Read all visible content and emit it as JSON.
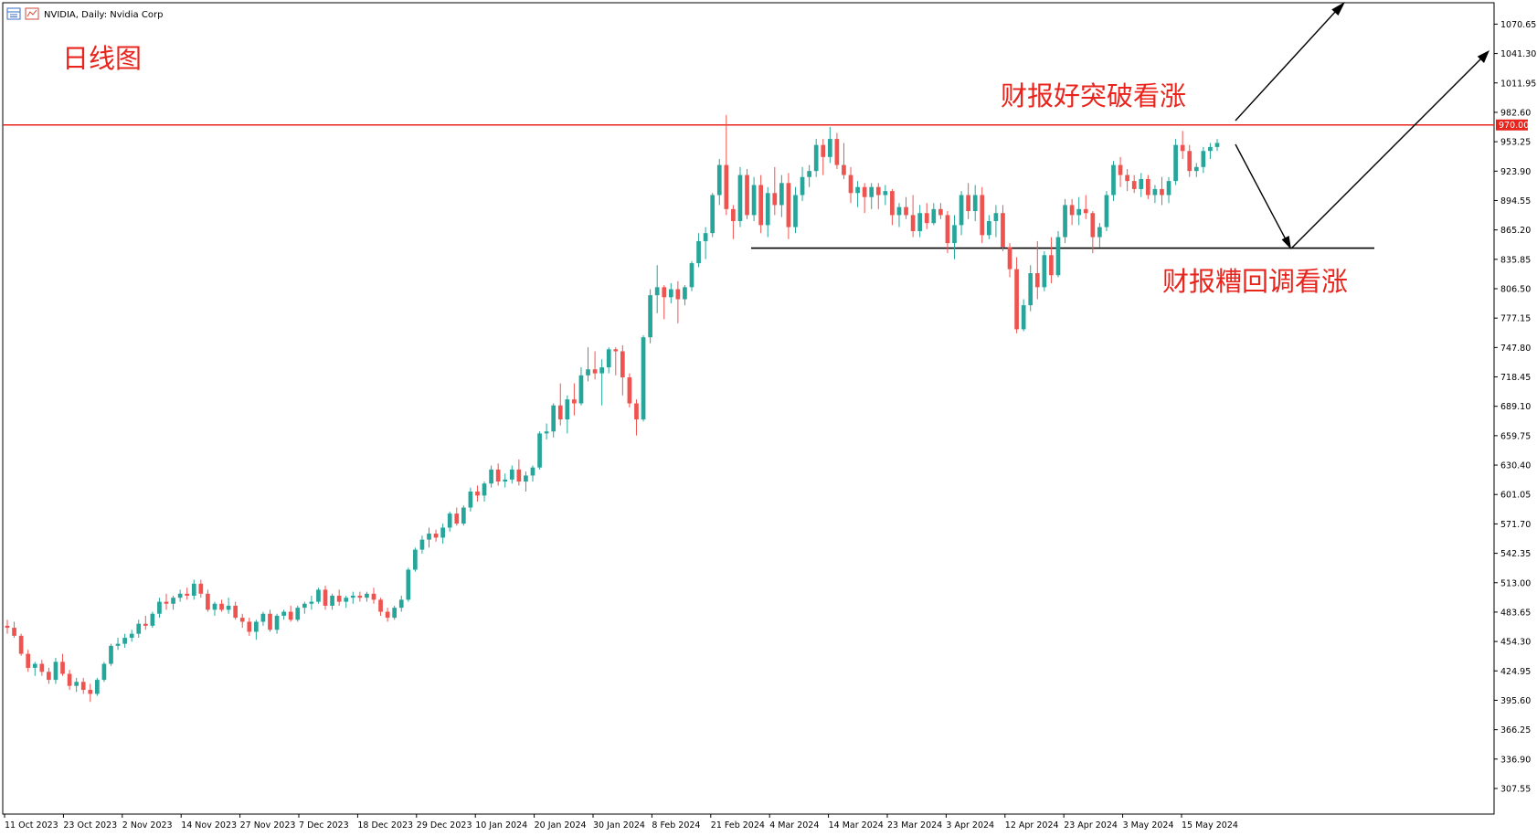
{
  "header": {
    "symbol_text": "NVIDIA, Daily:  Nvidia Corp",
    "symbol_icon": "chart-window-icon"
  },
  "annotations": {
    "title": "日线图",
    "upper_label": "财报好突破看涨",
    "lower_label": "财报糟回调看涨"
  },
  "colors": {
    "up": "#26a69a",
    "down": "#ef5350",
    "resistance": "#e8241c",
    "support": "#000000",
    "price_tag_bg": "#e8241c"
  },
  "resistance_level": {
    "value": 970.0,
    "label": "970.00"
  },
  "support_level": {
    "value": 847.0
  },
  "chart_data": {
    "type": "candlestick",
    "title": "",
    "ylim": [
      282.0,
      1092.0
    ],
    "grid": false,
    "y_ticks": [
      "1070.65",
      "1041.30",
      "1011.95",
      "982.60",
      "953.25",
      "923.90",
      "894.55",
      "865.20",
      "835.85",
      "806.50",
      "777.15",
      "747.80",
      "718.45",
      "689.10",
      "659.75",
      "630.40",
      "601.05",
      "571.70",
      "542.35",
      "513.00",
      "483.65",
      "454.30",
      "424.95",
      "395.60",
      "366.25",
      "336.90",
      "307.55"
    ],
    "x_ticks": [
      "11 Oct 2023",
      "23 Oct 2023",
      "2 Nov 2023",
      "14 Nov 2023",
      "27 Nov 2023",
      "7 Dec 2023",
      "18 Dec 2023",
      "29 Dec 2023",
      "10 Jan 2024",
      "20 Jan 2024",
      "30 Jan 2024",
      "8 Feb 2024",
      "21 Feb 2024",
      "4 Mar 2024",
      "14 Mar 2024",
      "23 Mar 2024",
      "3 Apr 2024",
      "12 Apr 2024",
      "23 Apr 2024",
      "3 May 2024",
      "15 May 2024"
    ],
    "candles": [
      [
        470,
        476,
        462,
        468
      ],
      [
        468,
        474,
        458,
        460
      ],
      [
        460,
        462,
        440,
        442
      ],
      [
        442,
        446,
        424,
        428
      ],
      [
        428,
        434,
        420,
        432
      ],
      [
        432,
        436,
        420,
        424
      ],
      [
        424,
        428,
        412,
        416
      ],
      [
        416,
        438,
        412,
        434
      ],
      [
        434,
        442,
        420,
        422
      ],
      [
        422,
        426,
        406,
        410
      ],
      [
        410,
        418,
        404,
        414
      ],
      [
        414,
        418,
        402,
        406
      ],
      [
        406,
        412,
        394,
        402
      ],
      [
        402,
        418,
        400,
        416
      ],
      [
        416,
        434,
        414,
        432
      ],
      [
        432,
        452,
        430,
        450
      ],
      [
        450,
        458,
        446,
        452
      ],
      [
        452,
        462,
        448,
        458
      ],
      [
        458,
        466,
        454,
        462
      ],
      [
        462,
        476,
        458,
        472
      ],
      [
        472,
        480,
        466,
        470
      ],
      [
        470,
        484,
        468,
        482
      ],
      [
        482,
        498,
        478,
        494
      ],
      [
        494,
        502,
        486,
        492
      ],
      [
        492,
        500,
        486,
        498
      ],
      [
        498,
        506,
        494,
        502
      ],
      [
        502,
        508,
        496,
        500
      ],
      [
        500,
        516,
        496,
        512
      ],
      [
        512,
        516,
        498,
        502
      ],
      [
        502,
        506,
        484,
        486
      ],
      [
        486,
        494,
        480,
        492
      ],
      [
        492,
        496,
        484,
        486
      ],
      [
        486,
        498,
        482,
        490
      ],
      [
        490,
        494,
        476,
        478
      ],
      [
        478,
        482,
        468,
        474
      ],
      [
        474,
        478,
        460,
        464
      ],
      [
        464,
        476,
        456,
        474
      ],
      [
        474,
        484,
        470,
        482
      ],
      [
        482,
        486,
        464,
        466
      ],
      [
        466,
        482,
        462,
        480
      ],
      [
        480,
        486,
        476,
        484
      ],
      [
        484,
        490,
        474,
        476
      ],
      [
        476,
        490,
        474,
        488
      ],
      [
        488,
        494,
        482,
        492
      ],
      [
        492,
        500,
        486,
        494
      ],
      [
        494,
        508,
        492,
        506
      ],
      [
        506,
        510,
        486,
        490
      ],
      [
        490,
        502,
        486,
        500
      ],
      [
        500,
        506,
        490,
        494
      ],
      [
        494,
        500,
        488,
        498
      ],
      [
        498,
        504,
        492,
        500
      ],
      [
        500,
        504,
        494,
        498
      ],
      [
        498,
        504,
        494,
        502
      ],
      [
        502,
        508,
        492,
        496
      ],
      [
        496,
        498,
        480,
        484
      ],
      [
        484,
        488,
        474,
        478
      ],
      [
        478,
        490,
        476,
        488
      ],
      [
        488,
        500,
        484,
        496
      ],
      [
        496,
        528,
        494,
        526
      ],
      [
        526,
        548,
        524,
        546
      ],
      [
        546,
        560,
        542,
        556
      ],
      [
        556,
        568,
        548,
        562
      ],
      [
        562,
        566,
        554,
        558
      ],
      [
        558,
        572,
        552,
        568
      ],
      [
        568,
        584,
        564,
        582
      ],
      [
        582,
        588,
        570,
        572
      ],
      [
        572,
        590,
        570,
        588
      ],
      [
        588,
        608,
        584,
        604
      ],
      [
        604,
        610,
        594,
        600
      ],
      [
        600,
        614,
        594,
        612
      ],
      [
        612,
        630,
        608,
        626
      ],
      [
        626,
        632,
        610,
        614
      ],
      [
        614,
        622,
        608,
        616
      ],
      [
        616,
        630,
        612,
        626
      ],
      [
        626,
        636,
        610,
        614
      ],
      [
        614,
        624,
        604,
        620
      ],
      [
        620,
        630,
        614,
        628
      ],
      [
        628,
        664,
        626,
        662
      ],
      [
        662,
        672,
        656,
        664
      ],
      [
        664,
        692,
        658,
        690
      ],
      [
        690,
        712,
        670,
        676
      ],
      [
        676,
        700,
        662,
        696
      ],
      [
        696,
        712,
        680,
        692
      ],
      [
        692,
        728,
        690,
        720
      ],
      [
        720,
        748,
        714,
        726
      ],
      [
        726,
        744,
        716,
        722
      ],
      [
        722,
        736,
        690,
        728
      ],
      [
        728,
        748,
        722,
        746
      ],
      [
        746,
        748,
        720,
        744
      ],
      [
        744,
        750,
        700,
        718
      ],
      [
        718,
        722,
        688,
        692
      ],
      [
        692,
        696,
        660,
        676
      ],
      [
        676,
        760,
        674,
        758
      ],
      [
        758,
        806,
        752,
        800
      ],
      [
        800,
        830,
        782,
        808
      ],
      [
        808,
        810,
        776,
        798
      ],
      [
        798,
        812,
        792,
        806
      ],
      [
        806,
        814,
        772,
        796
      ],
      [
        796,
        810,
        790,
        808
      ],
      [
        808,
        834,
        804,
        832
      ],
      [
        832,
        862,
        828,
        854
      ],
      [
        854,
        868,
        836,
        862
      ],
      [
        862,
        902,
        858,
        900
      ],
      [
        900,
        936,
        890,
        930
      ],
      [
        930,
        980,
        880,
        886
      ],
      [
        886,
        890,
        856,
        874
      ],
      [
        874,
        928,
        868,
        920
      ],
      [
        920,
        926,
        876,
        880
      ],
      [
        880,
        918,
        874,
        910
      ],
      [
        910,
        920,
        862,
        870
      ],
      [
        870,
        908,
        858,
        902
      ],
      [
        902,
        928,
        880,
        890
      ],
      [
        890,
        920,
        878,
        912
      ],
      [
        912,
        922,
        856,
        868
      ],
      [
        868,
        908,
        862,
        900
      ],
      [
        900,
        928,
        894,
        918
      ],
      [
        918,
        930,
        908,
        924
      ],
      [
        924,
        956,
        918,
        950
      ],
      [
        950,
        956,
        920,
        938
      ],
      [
        938,
        968,
        932,
        956
      ],
      [
        956,
        962,
        926,
        930
      ],
      [
        930,
        952,
        916,
        920
      ],
      [
        920,
        928,
        892,
        902
      ],
      [
        902,
        914,
        888,
        908
      ],
      [
        908,
        912,
        882,
        898
      ],
      [
        898,
        912,
        886,
        908
      ],
      [
        908,
        912,
        886,
        900
      ],
      [
        900,
        910,
        890,
        904
      ],
      [
        904,
        906,
        870,
        880
      ],
      [
        880,
        892,
        868,
        888
      ],
      [
        888,
        898,
        876,
        880
      ],
      [
        880,
        900,
        858,
        864
      ],
      [
        864,
        890,
        858,
        882
      ],
      [
        882,
        892,
        866,
        872
      ],
      [
        872,
        892,
        870,
        886
      ],
      [
        886,
        892,
        876,
        880
      ],
      [
        880,
        884,
        842,
        852
      ],
      [
        852,
        880,
        836,
        870
      ],
      [
        870,
        904,
        860,
        900
      ],
      [
        900,
        912,
        876,
        884
      ],
      [
        884,
        910,
        874,
        900
      ],
      [
        900,
        908,
        852,
        860
      ],
      [
        860,
        880,
        856,
        874
      ],
      [
        874,
        890,
        858,
        882
      ],
      [
        882,
        890,
        844,
        848
      ],
      [
        848,
        852,
        818,
        826
      ],
      [
        826,
        838,
        762,
        766
      ],
      [
        766,
        796,
        764,
        790
      ],
      [
        790,
        830,
        784,
        822
      ],
      [
        822,
        854,
        796,
        808
      ],
      [
        808,
        844,
        804,
        840
      ],
      [
        840,
        858,
        812,
        820
      ],
      [
        820,
        864,
        818,
        858
      ],
      [
        858,
        896,
        852,
        890
      ],
      [
        890,
        896,
        870,
        880
      ],
      [
        880,
        898,
        870,
        886
      ],
      [
        886,
        900,
        876,
        882
      ],
      [
        882,
        884,
        842,
        858
      ],
      [
        858,
        872,
        848,
        868
      ],
      [
        868,
        904,
        864,
        900
      ],
      [
        900,
        934,
        894,
        930
      ],
      [
        930,
        938,
        908,
        920
      ],
      [
        920,
        926,
        904,
        914
      ],
      [
        914,
        920,
        902,
        906
      ],
      [
        906,
        922,
        898,
        916
      ],
      [
        916,
        920,
        896,
        900
      ],
      [
        900,
        910,
        892,
        906
      ],
      [
        906,
        918,
        890,
        900
      ],
      [
        900,
        918,
        892,
        914
      ],
      [
        914,
        956,
        910,
        950
      ],
      [
        950,
        964,
        936,
        944
      ],
      [
        944,
        950,
        918,
        924
      ],
      [
        924,
        932,
        918,
        928
      ],
      [
        928,
        948,
        922,
        944
      ],
      [
        944,
        952,
        936,
        948
      ],
      [
        948,
        956,
        944,
        952
      ]
    ]
  }
}
